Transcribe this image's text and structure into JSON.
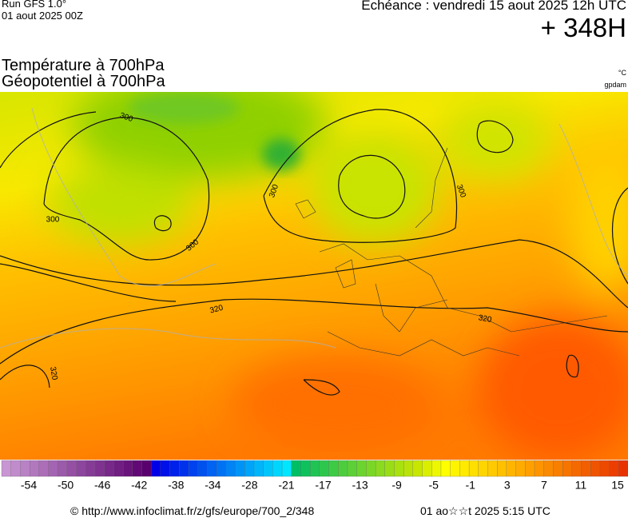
{
  "header": {
    "run": "Run GFS 1.0°",
    "run_date": "01 aout 2025 00Z",
    "valid": "Echéance : vendredi 15 aout 2025 12h UTC",
    "lead": "+ 348H"
  },
  "titles": {
    "line1": "Température à 700hPa",
    "line2": "Géopotentiel à 700hPa",
    "unit_temp": "°C",
    "unit_geo": "gpdam"
  },
  "map": {
    "contour_labels": [
      "300",
      "300",
      "300",
      "300",
      "300",
      "320",
      "320",
      "320"
    ]
  },
  "colorbar": {
    "labels": [
      "-54",
      "-50",
      "-46",
      "-42",
      "-38",
      "-34",
      "-28",
      "-21",
      "-17",
      "-13",
      "-9",
      "-5",
      "-1",
      "3",
      "7",
      "11",
      "15"
    ]
  },
  "footer": {
    "source": "© http://www.infoclimat.fr/z/gfs/europe/700_2/348",
    "generated": "01 ao☆☆t 2025  5:15 UTC"
  }
}
